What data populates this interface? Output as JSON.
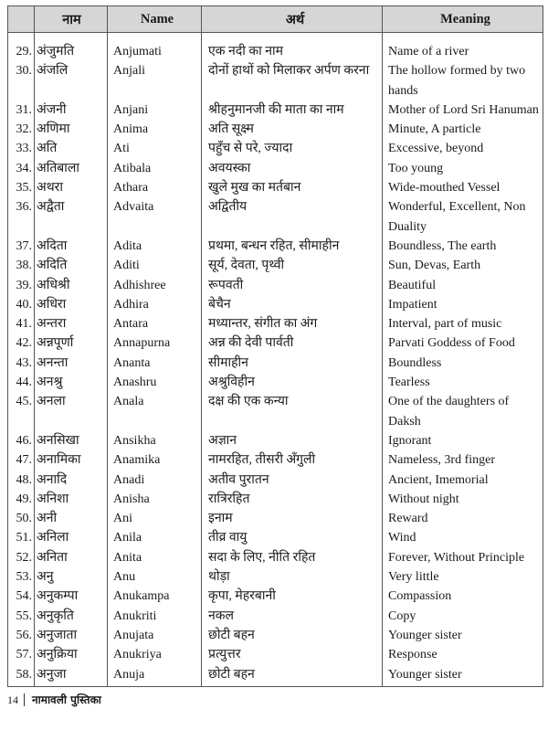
{
  "headers": [
    "नाम",
    "Name",
    "अर्थ",
    "Meaning"
  ],
  "rows": [
    {
      "no": "29.",
      "hi": "अंजुमति",
      "name": "Anjumati",
      "artha": "एक नदी का नाम",
      "meaning": "Name of a river"
    },
    {
      "no": "30.",
      "hi": "अंजलि",
      "name": "Anjali",
      "artha": "दोनों हाथों को मिलाकर अर्पण करना",
      "meaning": "The hollow formed by two hands"
    },
    {
      "no": "31.",
      "hi": "अंजनी",
      "name": "Anjani",
      "artha": "श्रीहनुमानजी की माता का नाम",
      "meaning": "Mother of Lord Sri Hanuman"
    },
    {
      "no": "32.",
      "hi": "अणिमा",
      "name": "Anima",
      "artha": "अति सूक्ष्म",
      "meaning": "Minute, A particle"
    },
    {
      "no": "33.",
      "hi": "अति",
      "name": "Ati",
      "artha": "पहुँच से परे, ज्यादा",
      "meaning": "Excessive, beyond"
    },
    {
      "no": "34.",
      "hi": "अतिबाला",
      "name": "Atibala",
      "artha": "अवयस्का",
      "meaning": "Too young"
    },
    {
      "no": "35.",
      "hi": "अथरा",
      "name": "Athara",
      "artha": "खुले मुख का मर्तबान",
      "meaning": "Wide-mouthed Vessel"
    },
    {
      "no": "36.",
      "hi": "अद्वैता",
      "name": "Advaita",
      "artha": "अद्वितीय",
      "meaning": "Wonderful, Excellent, Non Duality"
    },
    {
      "no": "37.",
      "hi": "अदिता",
      "name": "Adita",
      "artha": "प्रथमा, बन्धन रहित, सीमाहीन",
      "meaning": "Boundless, The earth"
    },
    {
      "no": "38.",
      "hi": "अदिति",
      "name": "Aditi",
      "artha": "सूर्य, देवता, पृथ्वी",
      "meaning": "Sun, Devas, Earth"
    },
    {
      "no": "39.",
      "hi": "अधिश्री",
      "name": "Adhishree",
      "artha": "रूपवती",
      "meaning": "Beautiful"
    },
    {
      "no": "40.",
      "hi": "अधिरा",
      "name": "Adhira",
      "artha": "बेचैन",
      "meaning": "Impatient"
    },
    {
      "no": "41.",
      "hi": "अन्तरा",
      "name": "Antara",
      "artha": "मध्यान्तर, संगीत का अंग",
      "meaning": "Interval, part of music"
    },
    {
      "no": "42.",
      "hi": "अन्नपूर्णा",
      "name": "Annapurna",
      "artha": "अन्न की देवी पार्वती",
      "meaning": "Parvati Goddess of Food"
    },
    {
      "no": "43.",
      "hi": "अनन्ता",
      "name": "Ananta",
      "artha": "सीमाहीन",
      "meaning": "Boundless"
    },
    {
      "no": "44.",
      "hi": "अनश्रु",
      "name": "Anashru",
      "artha": "अश्रुविहीन",
      "meaning": "Tearless"
    },
    {
      "no": "45.",
      "hi": "अनला",
      "name": "Anala",
      "artha": "दक्ष की एक कन्या",
      "meaning": "One of the daughters of Daksh"
    },
    {
      "no": "46.",
      "hi": "अनसिखा",
      "name": "Ansikha",
      "artha": "अज्ञान",
      "meaning": "Ignorant"
    },
    {
      "no": "47.",
      "hi": "अनामिका",
      "name": "Anamika",
      "artha": "नामरहित, तीसरी अँगुली",
      "meaning": "Nameless, 3rd finger"
    },
    {
      "no": "48.",
      "hi": "अनादि",
      "name": "Anadi",
      "artha": "अतीव पुरातन",
      "meaning": "Ancient, Imemorial"
    },
    {
      "no": "49.",
      "hi": "अनिशा",
      "name": "Anisha",
      "artha": "रात्रिरहित",
      "meaning": "Without night"
    },
    {
      "no": "50.",
      "hi": "अनी",
      "name": "Ani",
      "artha": "इनाम",
      "meaning": "Reward"
    },
    {
      "no": "51.",
      "hi": "अनिला",
      "name": "Anila",
      "artha": "तीव्र वायु",
      "meaning": "Wind"
    },
    {
      "no": "52.",
      "hi": "अनिता",
      "name": "Anita",
      "artha": "सदा के लिए, नीति रहित",
      "meaning": "Forever, Without Principle"
    },
    {
      "no": "53.",
      "hi": "अनु",
      "name": "Anu",
      "artha": "थोड़ा",
      "meaning": "Very little"
    },
    {
      "no": "54.",
      "hi": "अनुकम्पा",
      "name": "Anukampa",
      "artha": "कृपा, मेहरबानी",
      "meaning": "Compassion"
    },
    {
      "no": "55.",
      "hi": "अनुकृति",
      "name": "Anukriti",
      "artha": "नकल",
      "meaning": "Copy"
    },
    {
      "no": "56.",
      "hi": "अनुजाता",
      "name": "Anujata",
      "artha": "छोटी बहन",
      "meaning": "Younger sister"
    },
    {
      "no": "57.",
      "hi": "अनुक्रिया",
      "name": "Anukriya",
      "artha": "प्रत्युत्तर",
      "meaning": "Response"
    },
    {
      "no": "58.",
      "hi": "अनुजा",
      "name": "Anuja",
      "artha": "छोटी बहन",
      "meaning": "Younger sister"
    }
  ],
  "footer": {
    "page": "14",
    "title": "नामावली पुस्तिका"
  }
}
